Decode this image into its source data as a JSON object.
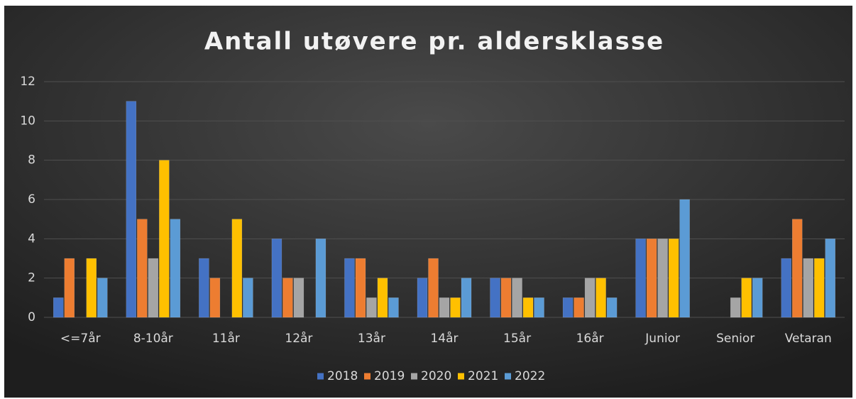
{
  "chart_data": {
    "type": "bar",
    "title": "Antall utøvere pr. aldersklasse",
    "categories": [
      "<=7år",
      "8-10år",
      "11år",
      "12år",
      "13år",
      "14år",
      "15år",
      "16år",
      "Junior",
      "Senior",
      "Vetaran"
    ],
    "series": [
      {
        "name": "2018",
        "color": "#4472c4",
        "values": [
          1,
          11,
          3,
          4,
          3,
          2,
          2,
          1,
          4,
          0,
          3
        ]
      },
      {
        "name": "2019",
        "color": "#ed7d31",
        "values": [
          3,
          5,
          2,
          2,
          3,
          3,
          2,
          1,
          4,
          0,
          5
        ]
      },
      {
        "name": "2020",
        "color": "#a5a5a5",
        "values": [
          0,
          3,
          0,
          2,
          1,
          1,
          2,
          2,
          4,
          1,
          3
        ]
      },
      {
        "name": "2021",
        "color": "#ffc000",
        "values": [
          3,
          8,
          5,
          0,
          2,
          1,
          1,
          2,
          4,
          2,
          3
        ]
      },
      {
        "name": "2022",
        "color": "#5b9bd5",
        "values": [
          2,
          5,
          2,
          4,
          1,
          2,
          1,
          1,
          6,
          2,
          4
        ]
      }
    ],
    "ylim": [
      0,
      12
    ],
    "yticks": [
      0,
      2,
      4,
      6,
      8,
      10,
      12
    ],
    "grid": true,
    "legend": "bottom"
  }
}
